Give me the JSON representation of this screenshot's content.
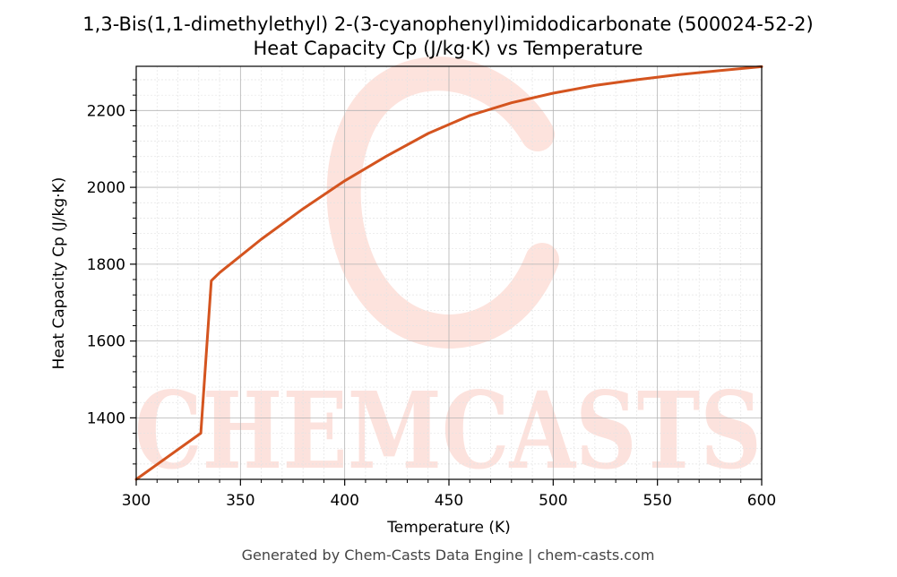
{
  "chart_data": {
    "type": "line",
    "title_line1": "1,3-Bis(1,1-dimethylethyl) 2-(3-cyanophenyl)imidodicarbonate (500024-52-2)",
    "title_line2": "Heat Capacity Cp (J/kg·K) vs Temperature",
    "xlabel": "Temperature (K)",
    "ylabel": "Heat Capacity Cp (J/kg·K)",
    "xlim": [
      300,
      600
    ],
    "ylim": [
      1240,
      2315
    ],
    "xticks": [
      300,
      350,
      400,
      450,
      500,
      550,
      600
    ],
    "yticks": [
      1400,
      1600,
      1800,
      2000,
      2200
    ],
    "grid": true,
    "line_color": "#d4541f",
    "series": [
      {
        "x": [
          300,
          331,
          336,
          340,
          360,
          380,
          400,
          420,
          440,
          460,
          480,
          500,
          520,
          540,
          560,
          580,
          600
        ],
        "y": [
          1240,
          1360,
          1757,
          1778,
          1865,
          1944,
          2017,
          2081,
          2140,
          2187,
          2220,
          2245,
          2265,
          2280,
          2293,
          2304,
          2314
        ]
      }
    ]
  },
  "watermark": {
    "text": "CHEMCASTS",
    "color": "#fcd9d2"
  },
  "footer": "Generated by Chem-Casts Data Engine | chem-casts.com"
}
